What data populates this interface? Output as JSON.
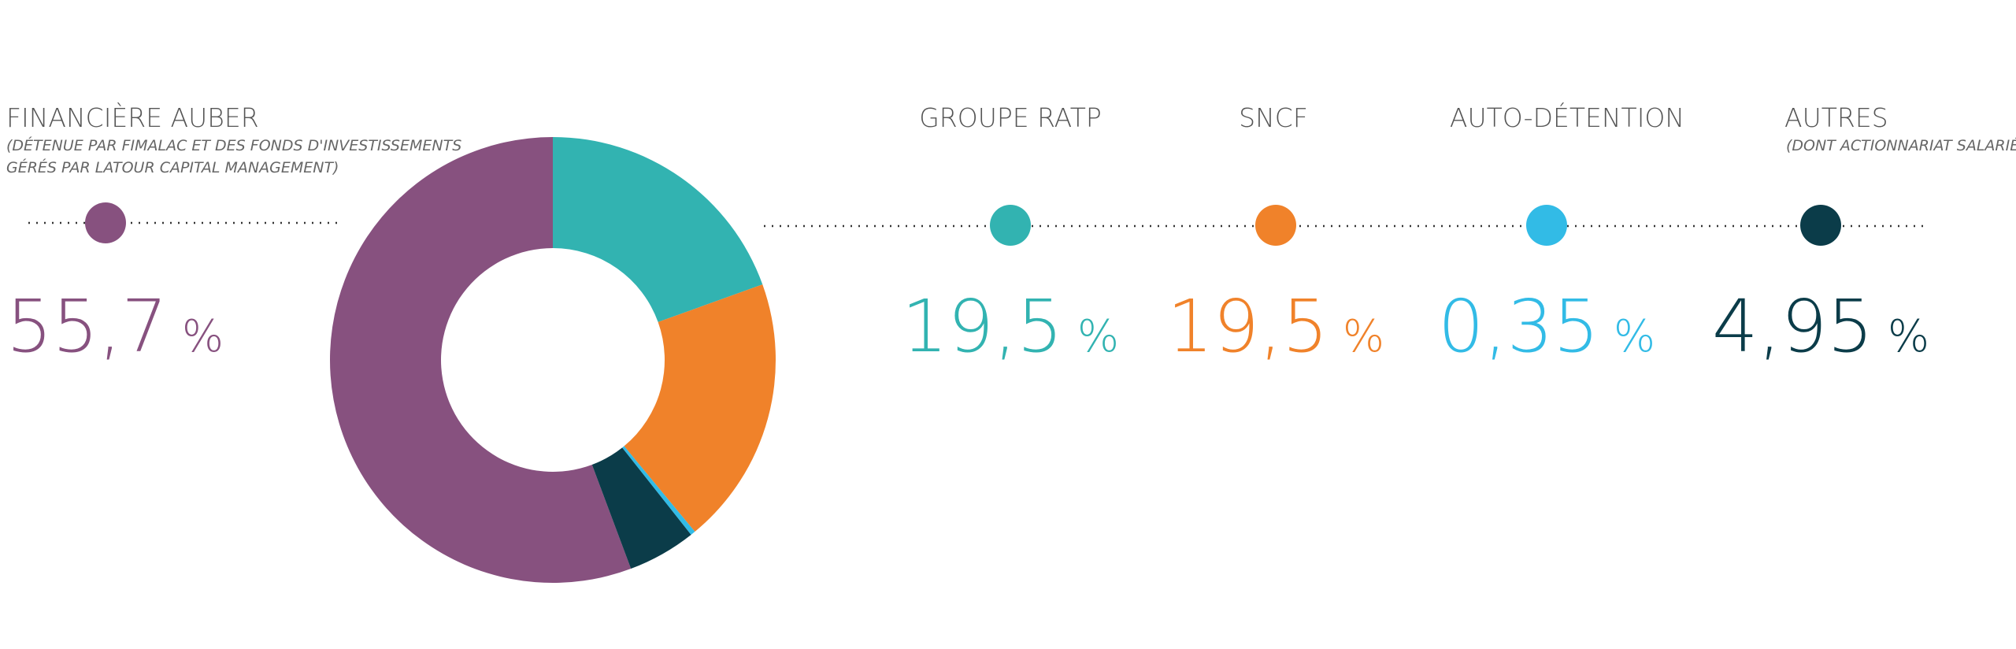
{
  "chart_data": {
    "type": "donut",
    "categories": [
      "FINANCIÈRE AUBER",
      "GROUPE RATP",
      "SNCF",
      "AUTO-DÉTENTION",
      "AUTRES"
    ],
    "category_notes": [
      [
        "(DÉTENUE PAR FIMALAC ET DES FONDS D'INVESTISSEMENTS",
        "GÉRÉS PAR LATOUR CAPITAL MANAGEMENT)"
      ],
      null,
      null,
      null,
      [
        "(DONT ACTIONNARIAT SALARIÉ)"
      ]
    ],
    "values": [
      55.7,
      19.5,
      19.5,
      0.35,
      4.95
    ],
    "value_labels": [
      "55,7",
      "19,5",
      "19,5",
      "0,35",
      "4,95"
    ],
    "unit": "%",
    "colors": [
      "#87517f",
      "#32b3b1",
      "#f0822a",
      "#32bbe6",
      "#0b3c49"
    ]
  }
}
